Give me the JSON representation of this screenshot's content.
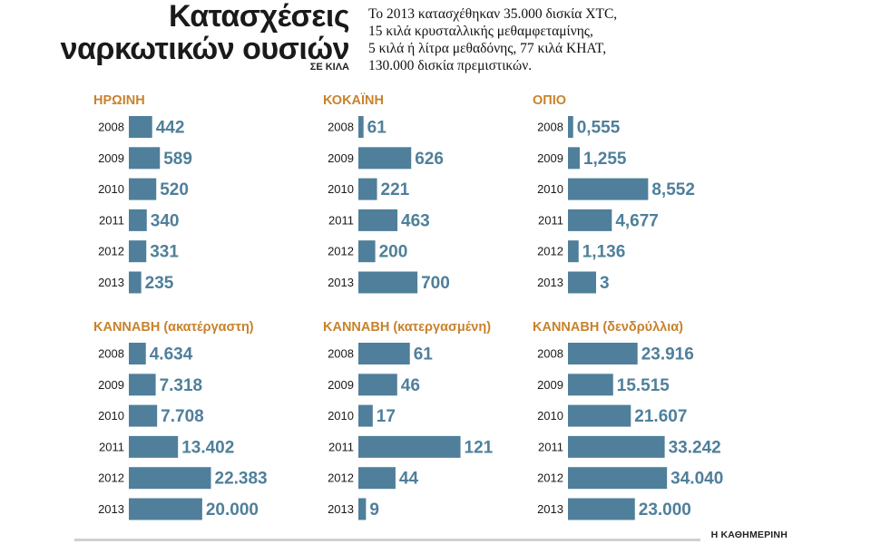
{
  "title_line1": "Κατασχέσεις",
  "title_line2": "ναρκωτικών ουσιών",
  "unit_label": "ΣΕ ΚΙΛΑ",
  "note_lines": [
    "Το 2013 κατασχέθηκαν 35.000 δισκία ΧΤC,",
    "15 κιλά κρυσταλλικής μεθαμφεταμίνης,",
    "5 κιλά ή λίτρα μεθαδόνης, 77 κιλά ΚΗΑΤ,",
    "130.000 δισκία πρεμιστικών."
  ],
  "credit": "Η ΚΑΘΗΜΕΡΙΝΗ",
  "colors": {
    "bar": "#4f7f9a",
    "panel_title": "#c8822c",
    "text": "#1a1a1a"
  },
  "chart_data": [
    {
      "type": "bar",
      "orientation": "horizontal",
      "title": "ΗΡΩΙΝΗ",
      "categories": [
        "2008",
        "2009",
        "2010",
        "2011",
        "2012",
        "2013"
      ],
      "values": [
        442,
        589,
        520,
        340,
        331,
        235
      ],
      "labels": [
        "442",
        "589",
        "520",
        "340",
        "331",
        "235"
      ],
      "xlim": [
        0,
        3200
      ]
    },
    {
      "type": "bar",
      "orientation": "horizontal",
      "title": "ΚΟΚΑΪΝΗ",
      "categories": [
        "2008",
        "2009",
        "2010",
        "2011",
        "2012",
        "2013"
      ],
      "values": [
        61,
        626,
        221,
        463,
        200,
        700
      ],
      "labels": [
        "61",
        "626",
        "221",
        "463",
        "200",
        "700"
      ],
      "xlim": [
        0,
        2000
      ]
    },
    {
      "type": "bar",
      "orientation": "horizontal",
      "title": "ΟΠΙΟ",
      "categories": [
        "2008",
        "2009",
        "2010",
        "2011",
        "2012",
        "2013"
      ],
      "values": [
        0.555,
        1.255,
        8.552,
        4.677,
        1.136,
        3
      ],
      "labels": [
        "0,555",
        "1,255",
        "8,552",
        "4,677",
        "1,136",
        "3"
      ],
      "xlim": [
        0,
        18
      ]
    },
    {
      "type": "bar",
      "orientation": "horizontal",
      "title": "ΚΑΝΝΑΒΗ (ακατέργαστη)",
      "categories": [
        "2008",
        "2009",
        "2010",
        "2011",
        "2012",
        "2013"
      ],
      "values": [
        4634,
        7318,
        7708,
        13402,
        22383,
        20000
      ],
      "labels": [
        "4.634",
        "7.318",
        "7.708",
        "13.402",
        "22.383",
        "20.000"
      ],
      "xlim": [
        0,
        46000
      ]
    },
    {
      "type": "bar",
      "orientation": "horizontal",
      "title": "ΚΑΝΝΑΒΗ (κατεργασμένη)",
      "categories": [
        "2008",
        "2009",
        "2010",
        "2011",
        "2012",
        "2013"
      ],
      "values": [
        61,
        46,
        17,
        121,
        44,
        9
      ],
      "labels": [
        "61",
        "46",
        "17",
        "121",
        "44",
        "9"
      ],
      "xlim": [
        0,
        200
      ]
    },
    {
      "type": "bar",
      "orientation": "horizontal",
      "title": "ΚΑΝΝΑΒΗ (δενδρύλλια)",
      "categories": [
        "2008",
        "2009",
        "2010",
        "2011",
        "2012",
        "2013"
      ],
      "values": [
        23916,
        15515,
        21607,
        33242,
        34040,
        23000
      ],
      "labels": [
        "23.916",
        "15.515",
        "21.607",
        "33.242",
        "34.040",
        "23.000"
      ],
      "xlim": [
        0,
        58000
      ]
    }
  ]
}
